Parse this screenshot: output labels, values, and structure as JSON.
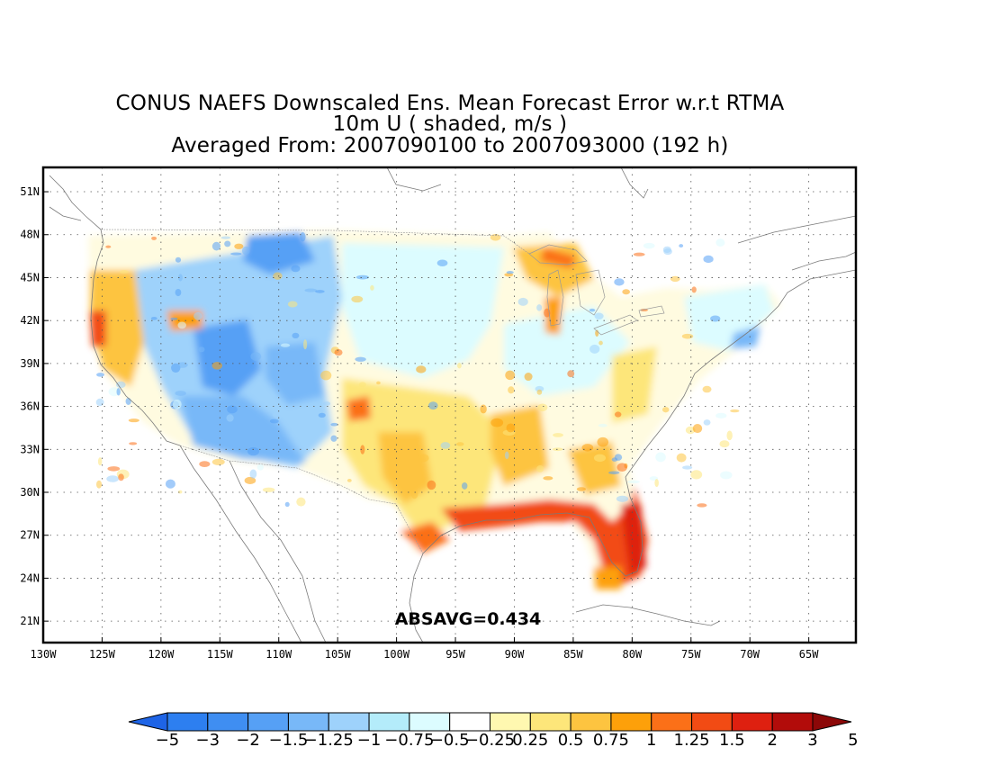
{
  "title": {
    "line1": "CONUS NAEFS Downscaled Ens. Mean Forecast Error w.r.t RTMA",
    "line2": "10m U ( shaded, m/s )",
    "line3": "Averaged From: 2007090100 to 2007093000 (192 h)"
  },
  "stat_label": "ABSAVG=0.434",
  "axes": {
    "lat_ticks": [
      "51N",
      "48N",
      "45N",
      "42N",
      "39N",
      "36N",
      "33N",
      "30N",
      "27N",
      "24N",
      "21N"
    ],
    "lon_ticks": [
      "130W",
      "125W",
      "120W",
      "115W",
      "110W",
      "105W",
      "100W",
      "95W",
      "90W",
      "85W",
      "80W",
      "75W",
      "70W",
      "65W"
    ],
    "lon_range": [
      -130,
      -61
    ],
    "lat_range": [
      19.5,
      52.7
    ],
    "grid": true
  },
  "colorbar": {
    "labels": [
      "−5",
      "−3",
      "−2",
      "−1.5",
      "−1.25",
      "−1",
      "−0.75",
      "−0.5",
      "−0.25",
      "0.25",
      "0.5",
      "0.75",
      "1",
      "1.25",
      "1.5",
      "2",
      "3",
      "5"
    ],
    "colors": [
      "#1e64e6",
      "#2d7ff0",
      "#3f8ef2",
      "#56a0f5",
      "#78b8f8",
      "#9ed2fb",
      "#b4ecfa",
      "#dcfcff",
      "#ffffff",
      "#fff8b0",
      "#fde67a",
      "#fdc440",
      "#fda00a",
      "#fb7018",
      "#f24b14",
      "#de2010",
      "#b20c0a",
      "#8c0808"
    ]
  }
}
